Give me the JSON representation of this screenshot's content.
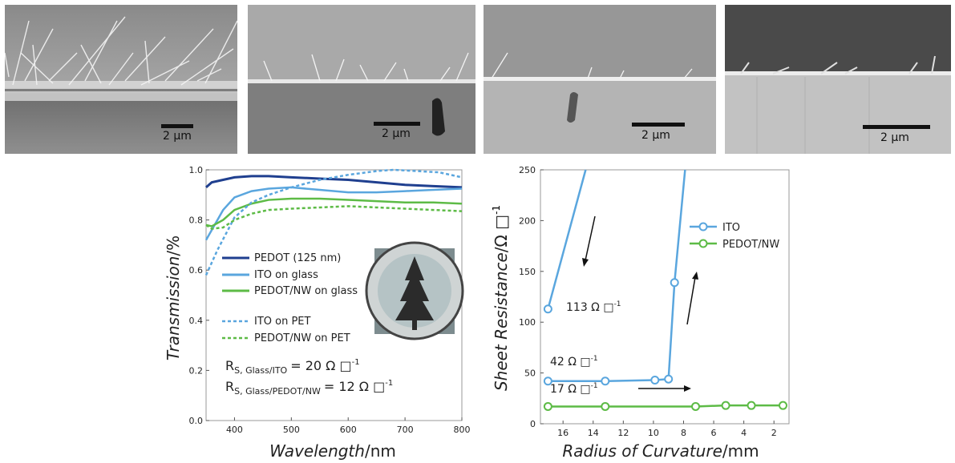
{
  "sem_images": [
    {
      "scale_label": "2 µm"
    },
    {
      "scale_label": "2 µm"
    },
    {
      "scale_label": "2 µm"
    },
    {
      "scale_label": "2 µm"
    }
  ],
  "colors": {
    "dark_blue": "#1f3f8f",
    "light_blue": "#5aa6de",
    "green": "#5dbb46",
    "arrow": "#111111"
  },
  "chart_data": [
    {
      "type": "line",
      "xlabel": "Wavelength",
      "xunit": "/nm",
      "ylabel": "Transmission",
      "yunit": "/%",
      "xlim": [
        350,
        800
      ],
      "ylim": [
        0.0,
        1.0
      ],
      "xticks": [
        "400",
        "500",
        "600",
        "700",
        "800"
      ],
      "yticks": [
        "0.0",
        "0.2",
        "0.4",
        "0.6",
        "0.8",
        "1.0"
      ],
      "legend_position": "center-left",
      "series": [
        {
          "name": "PEDOT (125 nm)",
          "style": "solid",
          "color": "#1f3f8f",
          "x": [
            350,
            360,
            380,
            400,
            430,
            460,
            500,
            550,
            600,
            650,
            700,
            750,
            800
          ],
          "y": [
            0.93,
            0.95,
            0.96,
            0.97,
            0.975,
            0.975,
            0.97,
            0.965,
            0.96,
            0.95,
            0.94,
            0.935,
            0.93
          ]
        },
        {
          "name": "ITO on glass",
          "style": "solid",
          "color": "#5aa6de",
          "x": [
            350,
            360,
            380,
            400,
            430,
            460,
            500,
            550,
            600,
            650,
            700,
            750,
            800
          ],
          "y": [
            0.72,
            0.76,
            0.84,
            0.89,
            0.915,
            0.925,
            0.93,
            0.92,
            0.91,
            0.91,
            0.915,
            0.92,
            0.925
          ]
        },
        {
          "name": "PEDOT/NW on glass",
          "style": "solid",
          "color": "#5dbb46",
          "x": [
            350,
            360,
            380,
            400,
            430,
            460,
            500,
            550,
            600,
            650,
            700,
            750,
            800
          ],
          "y": [
            0.78,
            0.775,
            0.8,
            0.84,
            0.865,
            0.88,
            0.885,
            0.885,
            0.88,
            0.875,
            0.87,
            0.87,
            0.865
          ]
        },
        {
          "name": "ITO on PET",
          "style": "dashed",
          "color": "#5aa6de",
          "x": [
            350,
            370,
            400,
            430,
            460,
            500,
            550,
            600,
            650,
            680,
            720,
            760,
            800
          ],
          "y": [
            0.58,
            0.68,
            0.81,
            0.87,
            0.9,
            0.93,
            0.96,
            0.98,
            0.995,
            1.0,
            0.995,
            0.99,
            0.97
          ]
        },
        {
          "name": "PEDOT/NW on PET",
          "style": "dashed",
          "color": "#5dbb46",
          "x": [
            350,
            360,
            380,
            400,
            430,
            460,
            500,
            550,
            600,
            650,
            700,
            750,
            800
          ],
          "y": [
            0.78,
            0.765,
            0.77,
            0.8,
            0.825,
            0.84,
            0.845,
            0.85,
            0.855,
            0.85,
            0.845,
            0.84,
            0.835
          ]
        }
      ],
      "annotations": {
        "rs_glass_ito": {
          "prefix": "R",
          "sub": "S, Glass/ITO",
          "value": "= 20 Ω □",
          "exp": "-1"
        },
        "rs_glass_pedot": {
          "prefix": "R",
          "sub": "S, Glass/PEDOT/NW",
          "value": "= 12 Ω □",
          "exp": "-1"
        }
      }
    },
    {
      "type": "line",
      "xlabel": "Radius of Curvature",
      "xunit": "/mm",
      "ylabel": "Sheet Resistance",
      "yunit": "/Ω □",
      "yunit_exp": "-1",
      "xlim": [
        17.5,
        1
      ],
      "ylim": [
        0,
        250
      ],
      "xticks": [
        "16",
        "14",
        "12",
        "10",
        "8",
        "6",
        "4",
        "2"
      ],
      "yticks": [
        "0",
        "50",
        "100",
        "150",
        "200",
        "250"
      ],
      "legend_position": "top-right",
      "series": [
        {
          "name": "ITO",
          "color": "#5aa6de",
          "x": [
            17,
            13.2,
            9.9,
            9.0,
            8.6,
            7.9
          ],
          "y": [
            42,
            42,
            43,
            44,
            139,
            250
          ]
        },
        {
          "name": "PEDOT/NW",
          "color": "#5dbb46",
          "x": [
            17,
            13.2,
            7.2,
            5.2,
            3.5,
            1.4
          ],
          "y": [
            17,
            17,
            17,
            18,
            18,
            18
          ]
        },
        {
          "name": "",
          "color": "#5aa6de",
          "x": [
            17,
            14.5
          ],
          "y": [
            113,
            250
          ]
        }
      ],
      "annotations": [
        {
          "text": "113 Ω □",
          "exp": "-1"
        },
        {
          "text": "42 Ω □",
          "exp": "-1"
        },
        {
          "text": "17 Ω □",
          "exp": "-1"
        }
      ]
    }
  ]
}
